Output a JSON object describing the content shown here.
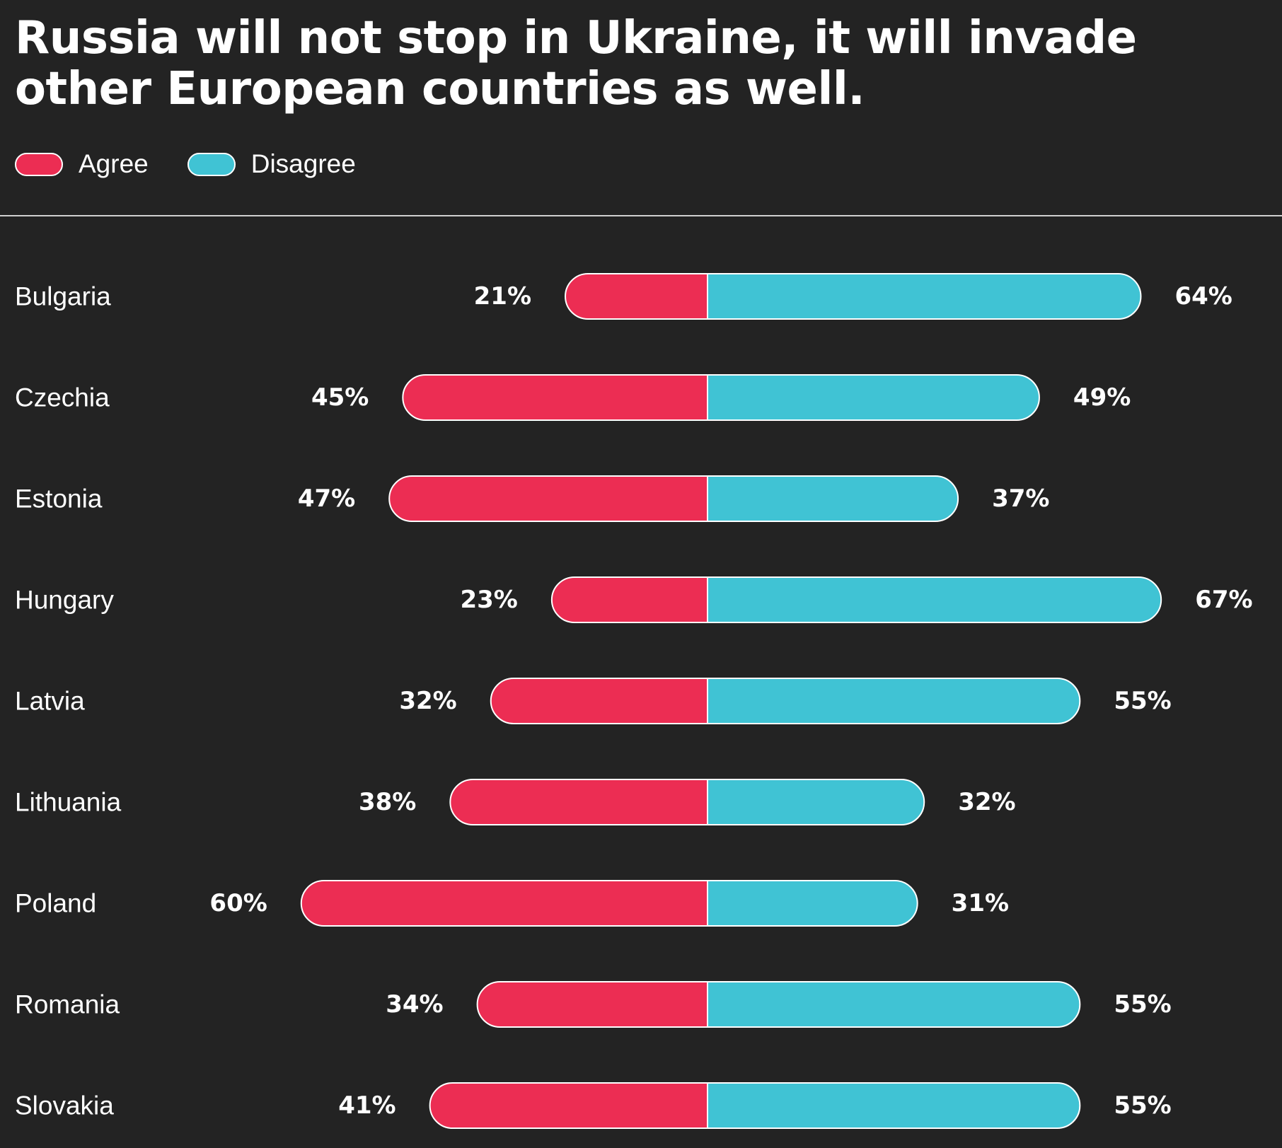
{
  "title": "Russia will not stop in Ukraine, it will invade other European countries as well.",
  "legend": [
    {
      "label": "Agree",
      "color": "#ec2d53"
    },
    {
      "label": "Disagree",
      "color": "#40c3d4"
    }
  ],
  "chart_data": {
    "type": "bar",
    "orientation": "horizontal-diverging",
    "title": "Russia will not stop in Ukraine, it will invade other European countries as well.",
    "categories": [
      "Bulgaria",
      "Czechia",
      "Estonia",
      "Hungary",
      "Latvia",
      "Lithuania",
      "Poland",
      "Romania",
      "Slovakia"
    ],
    "series": [
      {
        "name": "Agree",
        "color": "#ec2d53",
        "values": [
          21,
          45,
          47,
          23,
          32,
          38,
          60,
          34,
          41
        ],
        "labels": [
          "21%",
          "45%",
          "47%",
          "23%",
          "32%",
          "38%",
          "60%",
          "34%",
          "41%"
        ]
      },
      {
        "name": "Disagree",
        "color": "#40c3d4",
        "values": [
          64,
          49,
          37,
          67,
          55,
          32,
          31,
          55,
          55
        ],
        "labels": [
          "64%",
          "49%",
          "37%",
          "67%",
          "55%",
          "32%",
          "31%",
          "55%",
          "55%"
        ]
      }
    ],
    "unit": "%",
    "legend_position": "top-left",
    "grid": false
  }
}
